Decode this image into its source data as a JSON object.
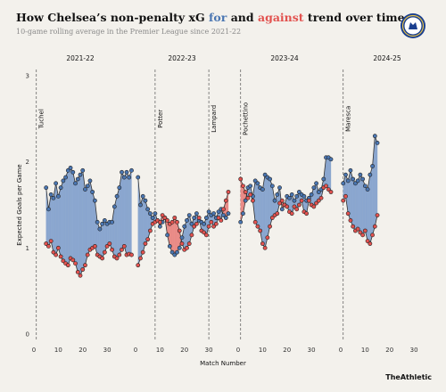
{
  "header": {
    "title_pre": "How Chelsea’s non-penalty xG ",
    "title_for": "for",
    "title_mid": " and ",
    "title_against": "against",
    "title_post": " trend over time",
    "subtitle": "10-game rolling average in the Premier League since 2021-22",
    "brand": "TheAthletic",
    "crest_icon": "chelsea-crest-icon"
  },
  "colors": {
    "for": "#4a76b2",
    "against": "#e2524f",
    "for_fill": "#8aa6cf",
    "against_fill": "#e98b87"
  },
  "chart_data": {
    "type": "line",
    "ylabel": "Expected Goals per Game",
    "xlabel": "Match Number",
    "ylim": [
      0,
      3
    ],
    "yticks": [
      0,
      1,
      2,
      3
    ],
    "xticks": [
      0,
      10,
      20,
      30
    ],
    "grid": false,
    "panels": [
      {
        "season": "2021-22",
        "xlim": [
          0,
          38
        ],
        "managers": [
          {
            "name": "Tuchel",
            "x": 1
          }
        ],
        "x_start": 5,
        "for": [
          1.7,
          1.45,
          1.62,
          1.58,
          1.75,
          1.6,
          1.7,
          1.78,
          1.82,
          1.9,
          1.93,
          1.88,
          1.75,
          1.8,
          1.85,
          1.9,
          1.68,
          1.72,
          1.78,
          1.65,
          1.55,
          1.3,
          1.22,
          1.28,
          1.32,
          1.28,
          1.3,
          1.3,
          1.48,
          1.6,
          1.7,
          1.88,
          1.82,
          1.88,
          1.82,
          1.9
        ],
        "against": [
          1.05,
          1.02,
          1.08,
          0.95,
          0.92,
          1.0,
          0.9,
          0.85,
          0.82,
          0.8,
          0.88,
          0.86,
          0.82,
          0.72,
          0.68,
          0.75,
          0.8,
          0.92,
          0.98,
          1.0,
          1.02,
          0.92,
          0.9,
          0.88,
          0.95,
          1.02,
          1.05,
          0.98,
          0.9,
          0.88,
          0.92,
          0.98,
          1.02,
          0.92,
          0.93,
          0.92
        ]
      },
      {
        "season": "2022-23",
        "xlim": [
          0,
          38
        ],
        "managers": [
          {
            "name": "Potter",
            "x": 8
          },
          {
            "name": "Lampard",
            "x": 30
          }
        ],
        "x_start": 1,
        "for": [
          1.82,
          1.5,
          1.6,
          1.55,
          1.45,
          1.4,
          1.35,
          1.4,
          1.32,
          1.25,
          1.3,
          1.35,
          1.15,
          1.02,
          0.95,
          0.92,
          0.95,
          1.0,
          1.12,
          1.25,
          1.32,
          1.38,
          1.28,
          1.35,
          1.4,
          1.32,
          1.3,
          1.28,
          1.35,
          1.42,
          1.38,
          1.4,
          1.35,
          1.42,
          1.45,
          1.38,
          1.35,
          1.4
        ],
        "against": [
          0.8,
          0.88,
          0.95,
          1.05,
          1.1,
          1.2,
          1.28,
          1.3,
          1.32,
          1.3,
          1.38,
          1.35,
          1.32,
          1.28,
          1.3,
          1.35,
          1.3,
          1.2,
          1.05,
          0.98,
          1.0,
          1.05,
          1.15,
          1.25,
          1.28,
          1.35,
          1.2,
          1.18,
          1.15,
          1.25,
          1.3,
          1.25,
          1.28,
          1.35,
          1.32,
          1.45,
          1.55,
          1.65
        ]
      },
      {
        "season": "2023-24",
        "xlim": [
          0,
          38
        ],
        "managers": [
          {
            "name": "Pochettino",
            "x": 1
          }
        ],
        "x_start": 1,
        "for": [
          1.3,
          1.4,
          1.55,
          1.7,
          1.72,
          1.6,
          1.78,
          1.75,
          1.7,
          1.68,
          1.85,
          1.82,
          1.8,
          1.72,
          1.55,
          1.62,
          1.7,
          1.45,
          1.5,
          1.6,
          1.58,
          1.62,
          1.55,
          1.6,
          1.65,
          1.62,
          1.6,
          1.55,
          1.58,
          1.62,
          1.7,
          1.75,
          1.65,
          1.68,
          1.8,
          2.05,
          2.05,
          2.03
        ],
        "against": [
          1.8,
          1.72,
          1.65,
          1.58,
          1.62,
          1.55,
          1.3,
          1.25,
          1.2,
          1.05,
          1.0,
          1.12,
          1.25,
          1.35,
          1.38,
          1.4,
          1.52,
          1.55,
          1.5,
          1.48,
          1.42,
          1.4,
          1.48,
          1.45,
          1.5,
          1.55,
          1.42,
          1.4,
          1.55,
          1.5,
          1.48,
          1.52,
          1.55,
          1.58,
          1.7,
          1.72,
          1.68,
          1.65
        ]
      },
      {
        "season": "2024-25",
        "xlim": [
          0,
          38
        ],
        "managers": [
          {
            "name": "Maresca",
            "x": 1
          }
        ],
        "x_start": 1,
        "for": [
          1.75,
          1.85,
          1.78,
          1.9,
          1.8,
          1.75,
          1.78,
          1.85,
          1.8,
          1.72,
          1.68,
          1.85,
          1.95,
          2.3,
          2.22
        ],
        "against": [
          1.55,
          1.6,
          1.4,
          1.32,
          1.25,
          1.2,
          1.22,
          1.18,
          1.15,
          1.2,
          1.08,
          1.05,
          1.15,
          1.25,
          1.38
        ]
      }
    ]
  }
}
